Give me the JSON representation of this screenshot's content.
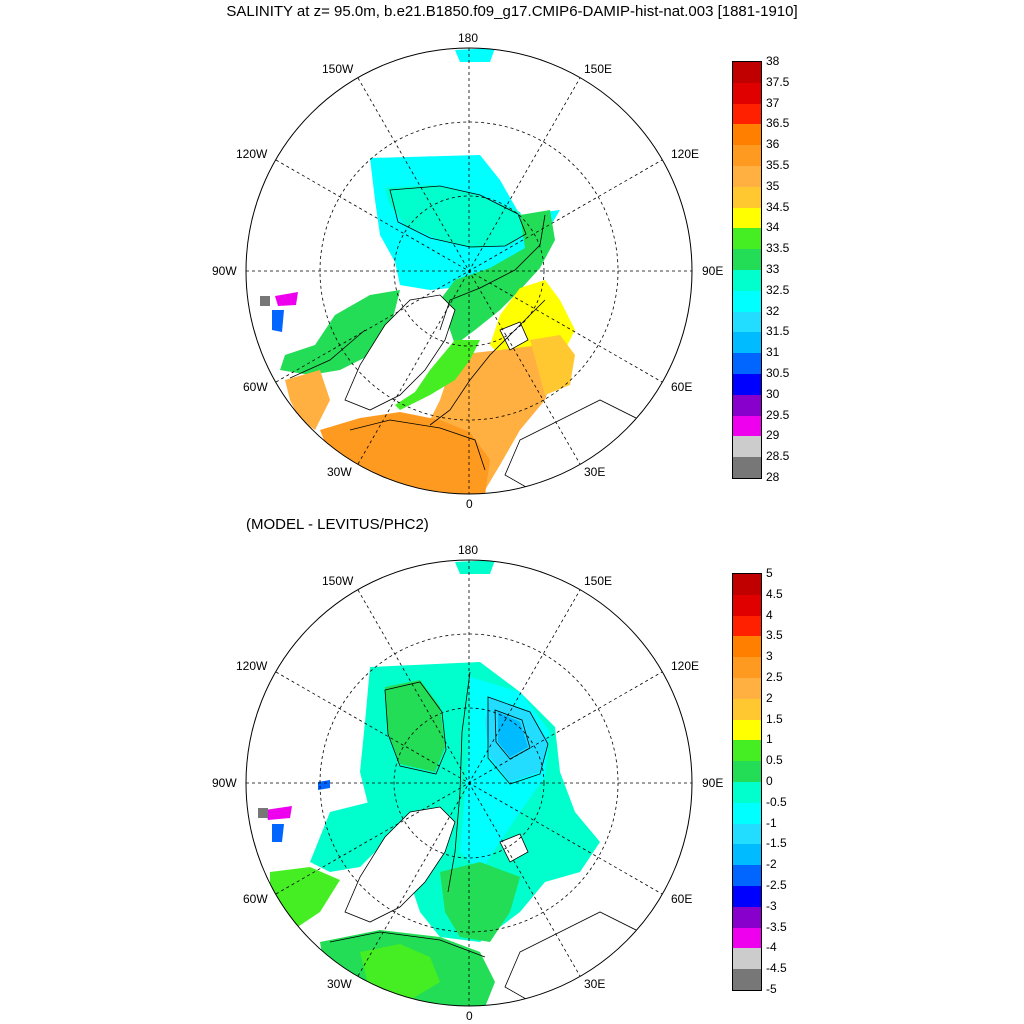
{
  "title": "SALINITY at z=  95.0m, b.e21.B1850.f09_g17.CMIP6-DAMIP-hist-nat.003 [1881-1910]",
  "subtitle": "(MODEL - LEVITUS/PHC2)",
  "lon_labels": {
    "top": "180",
    "bottom": "0",
    "left": "90W",
    "right": "90E",
    "upper_left_1": "150W",
    "upper_left_2": "120W",
    "lower_left_1": "60W",
    "lower_left_2": "30W",
    "upper_right_1": "150E",
    "upper_right_2": "120E",
    "lower_right_1": "60E",
    "lower_right_2": "30E"
  },
  "colorbars": [
    {
      "name": "salinity",
      "labels": [
        "38",
        "37.5",
        "37",
        "36.5",
        "36",
        "35.5",
        "35",
        "34.5",
        "34",
        "33.5",
        "33",
        "32.5",
        "32",
        "31.5",
        "31",
        "30.5",
        "30",
        "29.5",
        "29",
        "28.5",
        "28"
      ],
      "colors": [
        "#c00000",
        "#e00000",
        "#ff2000",
        "#ff8000",
        "#ff9a20",
        "#ffb040",
        "#ffc830",
        "#ffff00",
        "#44ee22",
        "#22dd55",
        "#00ffcc",
        "#00ffff",
        "#22ddff",
        "#00bbff",
        "#0066ff",
        "#0000ff",
        "#8800cc",
        "#ee00ee",
        "#cccccc",
        "#777777"
      ]
    },
    {
      "name": "difference",
      "labels": [
        "5",
        "4.5",
        "4",
        "3.5",
        "3",
        "2.5",
        "2",
        "1.5",
        "1",
        "0.5",
        "0",
        "-0.5",
        "-1",
        "-1.5",
        "-2",
        "-2.5",
        "-3",
        "-3.5",
        "-4",
        "-4.5",
        "-5"
      ],
      "colors": [
        "#c00000",
        "#e00000",
        "#ff2000",
        "#ff8000",
        "#ff9a20",
        "#ffb040",
        "#ffc830",
        "#ffff00",
        "#44ee22",
        "#22dd55",
        "#00ffcc",
        "#00ffff",
        "#22ddff",
        "#00bbff",
        "#0066ff",
        "#0000ff",
        "#8800cc",
        "#ee00ee",
        "#cccccc",
        "#777777"
      ]
    }
  ]
}
